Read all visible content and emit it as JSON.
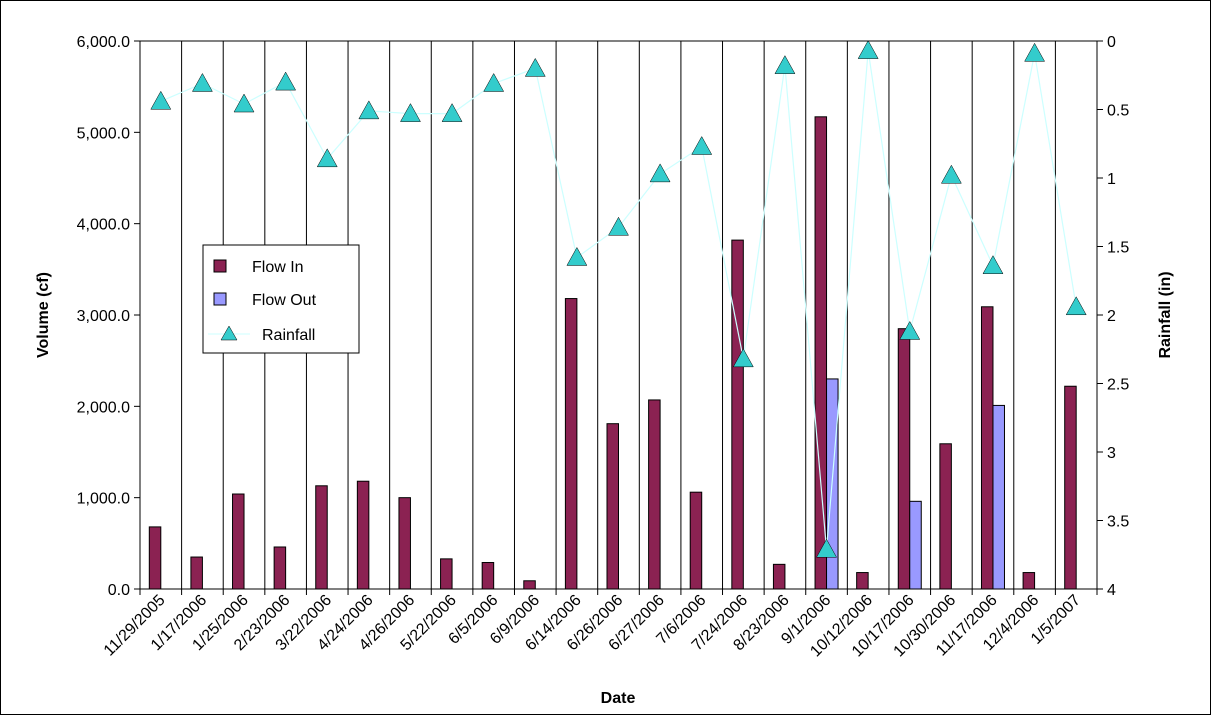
{
  "chart_data": {
    "type": "bar",
    "categories": [
      "11/29/2005",
      "1/17/2006",
      "1/25/2006",
      "2/23/2006",
      "3/22/2006",
      "4/24/2006",
      "4/26/2006",
      "5/22/2006",
      "6/5/2006",
      "6/9/2006",
      "6/14/2006",
      "6/26/2006",
      "6/27/2006",
      "7/6/2006",
      "7/24/2006",
      "8/23/2006",
      "9/1/2006",
      "10/12/2006",
      "10/17/2006",
      "10/30/2006",
      "11/17/2006",
      "12/4/2006",
      "1/5/2007"
    ],
    "series": [
      {
        "name": "Flow In",
        "type": "bar",
        "axis": "left",
        "color": "#8B2252",
        "values": [
          680,
          350,
          1040,
          460,
          1130,
          1180,
          1000,
          330,
          290,
          90,
          3180,
          1810,
          2070,
          1060,
          3820,
          270,
          5170,
          180,
          2850,
          1590,
          3090,
          180,
          2220
        ]
      },
      {
        "name": "Flow Out",
        "type": "bar",
        "axis": "left",
        "color": "#9999FF",
        "values": [
          0,
          0,
          0,
          0,
          0,
          0,
          0,
          0,
          0,
          0,
          0,
          0,
          0,
          0,
          0,
          0,
          2300,
          0,
          960,
          0,
          2010,
          0,
          0
        ]
      },
      {
        "name": "Rainfall",
        "type": "line",
        "axis": "right",
        "color": "#33CCCC",
        "line_color": "#CCFFFF",
        "values": [
          0.44,
          0.31,
          0.46,
          0.3,
          0.86,
          0.51,
          0.53,
          0.53,
          0.31,
          0.2,
          1.58,
          1.36,
          0.97,
          0.77,
          2.32,
          0.18,
          3.71,
          0.07,
          2.12,
          0.98,
          1.64,
          0.09,
          1.94
        ]
      }
    ],
    "xlabel": "Date",
    "ylabel": "Volume (cf)",
    "y2label": "Rainfall (in)",
    "ylim": [
      0,
      6000
    ],
    "y2lim": [
      0,
      4
    ],
    "y2_reversed": true,
    "yticks": [
      "0.0",
      "1,000.0",
      "2,000.0",
      "3,000.0",
      "4,000.0",
      "5,000.0",
      "6,000.0"
    ],
    "y2ticks": [
      "0",
      "0.5",
      "1",
      "1.5",
      "2",
      "2.5",
      "3",
      "3.5",
      "4"
    ],
    "grid": "vertical",
    "legend": {
      "placement": "left-middle",
      "entries": [
        "Flow In",
        "Flow Out",
        "Rainfall"
      ]
    }
  }
}
